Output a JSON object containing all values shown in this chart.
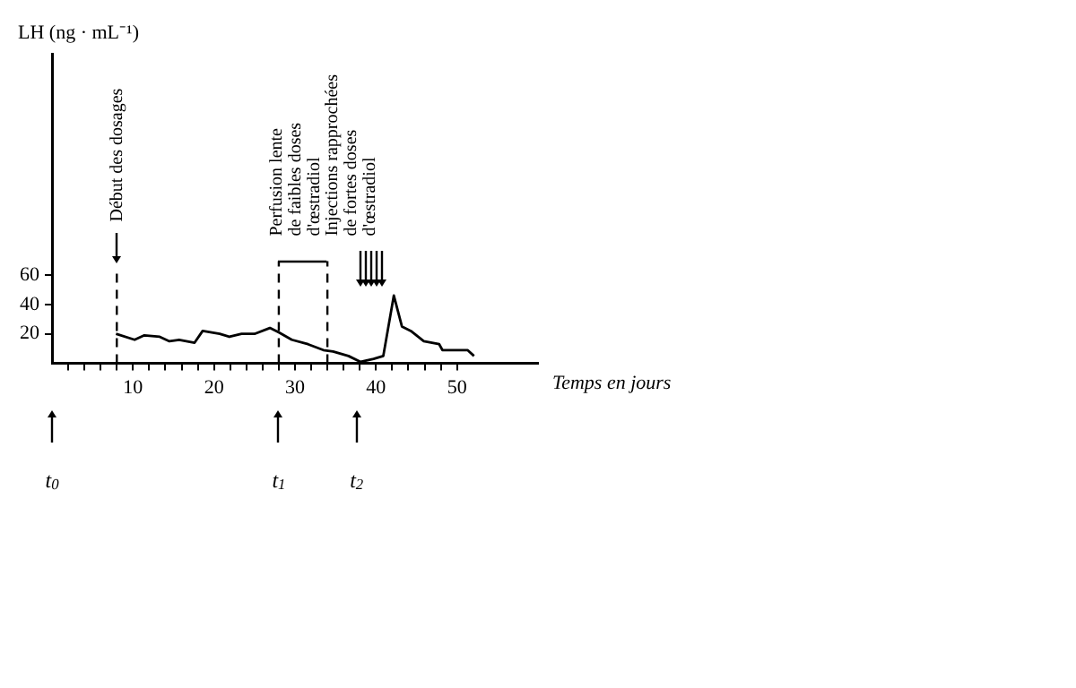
{
  "chart_data": {
    "type": "line",
    "xlabel": "Temps en jours",
    "ylabel": "LH (ng · mL⁻¹)",
    "x": [
      7.9,
      10.2,
      11.4,
      13.3,
      14.5,
      15.7,
      17.6,
      18.6,
      20.7,
      21.9,
      23.4,
      25,
      26.9,
      28,
      29.6,
      31.6,
      33.5,
      34.7,
      36.6,
      38.1,
      39.7,
      40.9,
      42.2,
      43.2,
      44.3,
      45.9,
      47.8,
      48.2,
      51.3,
      52.1
    ],
    "values": [
      20,
      16,
      19,
      18,
      15,
      16,
      14,
      22,
      20,
      18,
      20,
      20,
      24,
      21,
      16,
      13,
      9,
      8,
      5,
      1,
      3,
      5,
      46,
      25,
      22,
      15,
      13,
      9,
      9,
      5
    ],
    "color": "#000000",
    "marker": "none",
    "line_style": "solid",
    "grid": false,
    "legend": false,
    "xlim": [
      0,
      60
    ],
    "ylim": [
      0,
      210
    ],
    "xticks": [
      {
        "value": 2,
        "label": null
      },
      {
        "value": 4,
        "label": null
      },
      {
        "value": 6,
        "label": null
      },
      {
        "value": 8,
        "label": null
      },
      10,
      {
        "value": 12,
        "label": null
      },
      {
        "value": 14,
        "label": null
      },
      {
        "value": 16,
        "label": null
      },
      {
        "value": 18,
        "label": null
      },
      20,
      {
        "value": 22,
        "label": null
      },
      {
        "value": 24,
        "label": null
      },
      {
        "value": 26,
        "label": null
      },
      {
        "value": 28,
        "label": null
      },
      30,
      {
        "value": 32,
        "label": null
      },
      {
        "value": 34,
        "label": null
      },
      {
        "value": 36,
        "label": null
      },
      {
        "value": 38,
        "label": null
      },
      40,
      {
        "value": 42,
        "label": null
      },
      {
        "value": 44,
        "label": null
      },
      {
        "value": 46,
        "label": null
      },
      {
        "value": 48,
        "label": null
      },
      50
    ],
    "yticks": [
      20,
      40,
      60
    ],
    "ref_lines": [
      {
        "axis": "x",
        "value": 8,
        "label": "Début des dosages",
        "color": "#000000",
        "line_style": "dashed"
      },
      {
        "axis": "x",
        "value": 28,
        "color": "#000000",
        "line_style": "dashed"
      },
      {
        "axis": "x",
        "value": 34,
        "color": "#000000",
        "line_style": "dashed"
      }
    ],
    "annotations": [
      "Perfusion lente de faibles doses d'œstradiol",
      "Injections rapprochées de fortes doses d'œstradiol",
      "t$_{0}$",
      "t$_{1}$",
      "t$_{2}$"
    ]
  }
}
